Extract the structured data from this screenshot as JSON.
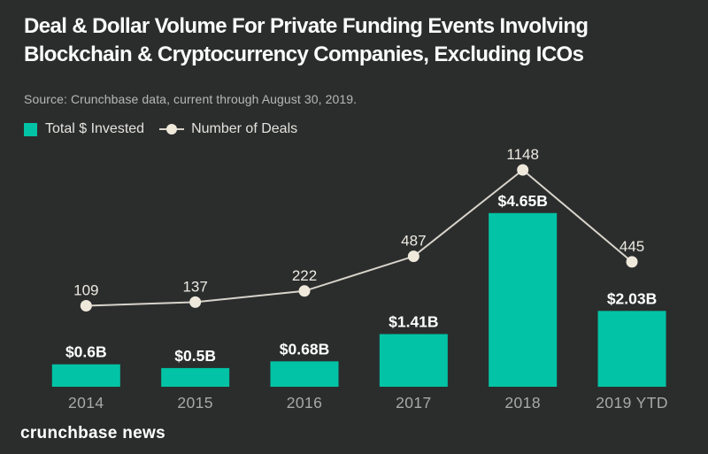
{
  "page": {
    "background_color": "#2b2d2d",
    "title_lines": [
      "Deal & Dollar Volume For Private Funding Events Involving",
      "Blockchain & Cryptocurrency Companies, Excluding ICOs"
    ],
    "source_note": "Source: Crunchbase data, current through August 30, 2019.",
    "footer_brand": "crunchbase news"
  },
  "legend": {
    "items": [
      {
        "label": "Total $ Invested",
        "marker": "square",
        "color": "#02c3a5"
      },
      {
        "label": "Number of Deals",
        "marker": "line-dot",
        "color": "#efe9dc"
      }
    ]
  },
  "colors": {
    "background": "#2b2d2d",
    "bar": "#02c3a5",
    "line": "#d8d4cb",
    "dot": "#efe9dc",
    "title_text": "#fcfcfc",
    "source_text": "#b7b7b7",
    "legend_text": "#e4e2de",
    "value_label": "#ffffff",
    "deal_label": "#edeae2",
    "year_label": "#a8a8a8",
    "footer_text": "#ffffff"
  },
  "chart_data": {
    "type": "bar+line",
    "title": "Deal & Dollar Volume For Private Funding Events Involving Blockchain & Cryptocurrency Companies, Excluding ICOs",
    "source": "Source: Crunchbase data, current through August 30, 2019.",
    "categories": [
      "2014",
      "2015",
      "2016",
      "2017",
      "2018",
      "2019 YTD"
    ],
    "series": [
      {
        "name": "Total $ Invested",
        "type": "bar",
        "unit": "USD billions",
        "values": [
          0.6,
          0.5,
          0.68,
          1.41,
          4.65,
          2.03
        ],
        "value_labels": [
          "$0.6B",
          "$0.5B",
          "$0.68B",
          "$1.41B",
          "$4.65B",
          "$2.03B"
        ]
      },
      {
        "name": "Number of Deals",
        "type": "line",
        "unit": "deals",
        "values": [
          109,
          137,
          222,
          487,
          1148,
          445
        ],
        "value_labels": [
          "109",
          "137",
          "222",
          "487",
          "1148",
          "445"
        ]
      }
    ],
    "xlabel": "",
    "ylabel": "",
    "grid": false,
    "axes_hidden": true,
    "legend_position": "top-left"
  }
}
